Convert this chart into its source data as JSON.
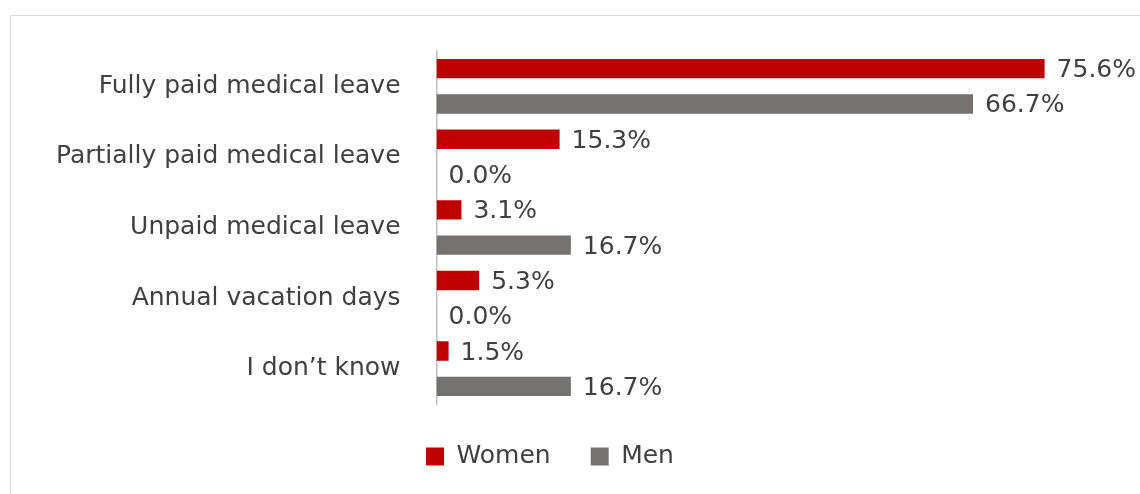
{
  "chart_data": {
    "type": "bar",
    "orientation": "horizontal",
    "categories": [
      "Fully paid medical leave",
      "Partially paid medical leave",
      "Unpaid medical leave",
      "Annual vacation days",
      "I don’t know"
    ],
    "series": [
      {
        "name": "Women",
        "color": "#c00000",
        "values": [
          75.6,
          15.3,
          3.1,
          5.3,
          1.5
        ],
        "value_labels": [
          "75.6%",
          "15.3%",
          "3.1%",
          "5.3%",
          "1.5%"
        ]
      },
      {
        "name": "Men",
        "color": "#767171",
        "values": [
          66.7,
          0,
          16.7,
          0,
          16.7
        ],
        "value_labels": [
          "66.7%",
          "0.0%",
          "16.7%",
          "0.0%",
          "16.7%"
        ]
      }
    ],
    "tick_labels": "y",
    "grid": false,
    "legend": "bottom"
  }
}
